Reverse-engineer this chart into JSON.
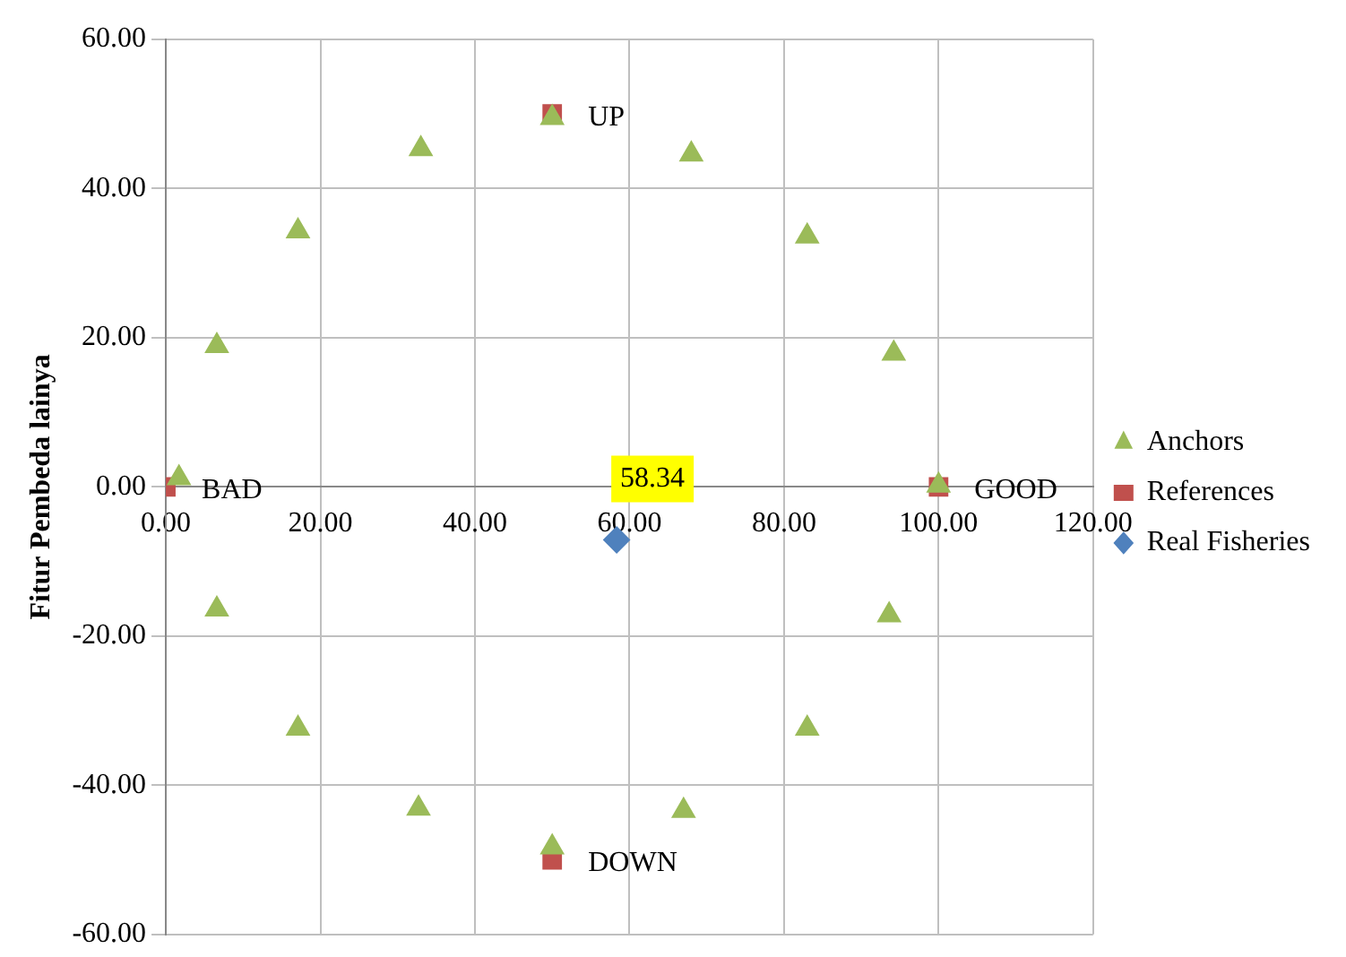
{
  "chart_data": {
    "type": "scatter",
    "ylabel": "Fitur Pembeda lainya",
    "xlim": [
      0,
      120
    ],
    "ylim": [
      -60,
      60
    ],
    "xticks": [
      {
        "value": 0,
        "label": "0.00"
      },
      {
        "value": 20,
        "label": "20.00"
      },
      {
        "value": 40,
        "label": "40.00"
      },
      {
        "value": 60,
        "label": "60.00"
      },
      {
        "value": 80,
        "label": "80.00"
      },
      {
        "value": 100,
        "label": "100.00"
      },
      {
        "value": 120,
        "label": "120.00"
      }
    ],
    "yticks": [
      {
        "value": -60,
        "label": "-60.00"
      },
      {
        "value": -40,
        "label": "-40.00"
      },
      {
        "value": -20,
        "label": "-20.00"
      },
      {
        "value": 0,
        "label": "0.00"
      },
      {
        "value": 20,
        "label": "20.00"
      },
      {
        "value": 40,
        "label": "40.00"
      },
      {
        "value": 60,
        "label": "60.00"
      }
    ],
    "grid": true,
    "legend": "right",
    "series": [
      {
        "name": "Real Fisheries",
        "color": "#4f81bd",
        "marker": "diamond",
        "x": [
          58.34
        ],
        "values": [
          -7.1
        ]
      },
      {
        "name": "References",
        "color": "#c0504d",
        "marker": "square",
        "x": [
          0,
          100,
          50,
          50
        ],
        "values": [
          0,
          0,
          50,
          -50
        ]
      },
      {
        "name": "Anchors",
        "color": "#9bbb59",
        "marker": "triangle",
        "x": [
          1.7,
          6.6,
          17.1,
          33,
          50,
          68,
          83,
          94.2,
          100,
          93.6,
          83,
          67,
          50,
          32.7,
          17.1,
          6.6
        ],
        "values": [
          1.2,
          18.9,
          34.3,
          45.3,
          49.5,
          44.6,
          33.6,
          17.9,
          0.2,
          -17.2,
          -32.4,
          -43.4,
          -48.3,
          -43.1,
          -32.4,
          -16.4
        ]
      }
    ],
    "annotations": [
      {
        "text": "58.34",
        "x": 58.34,
        "y": -7.1
      },
      {
        "text": "BAD",
        "x": 0,
        "y": 0
      },
      {
        "text": "GOOD",
        "x": 100,
        "y": 0
      },
      {
        "text": "UP",
        "x": 50,
        "y": 50
      },
      {
        "text": "DOWN",
        "x": 50,
        "y": -50
      }
    ]
  }
}
